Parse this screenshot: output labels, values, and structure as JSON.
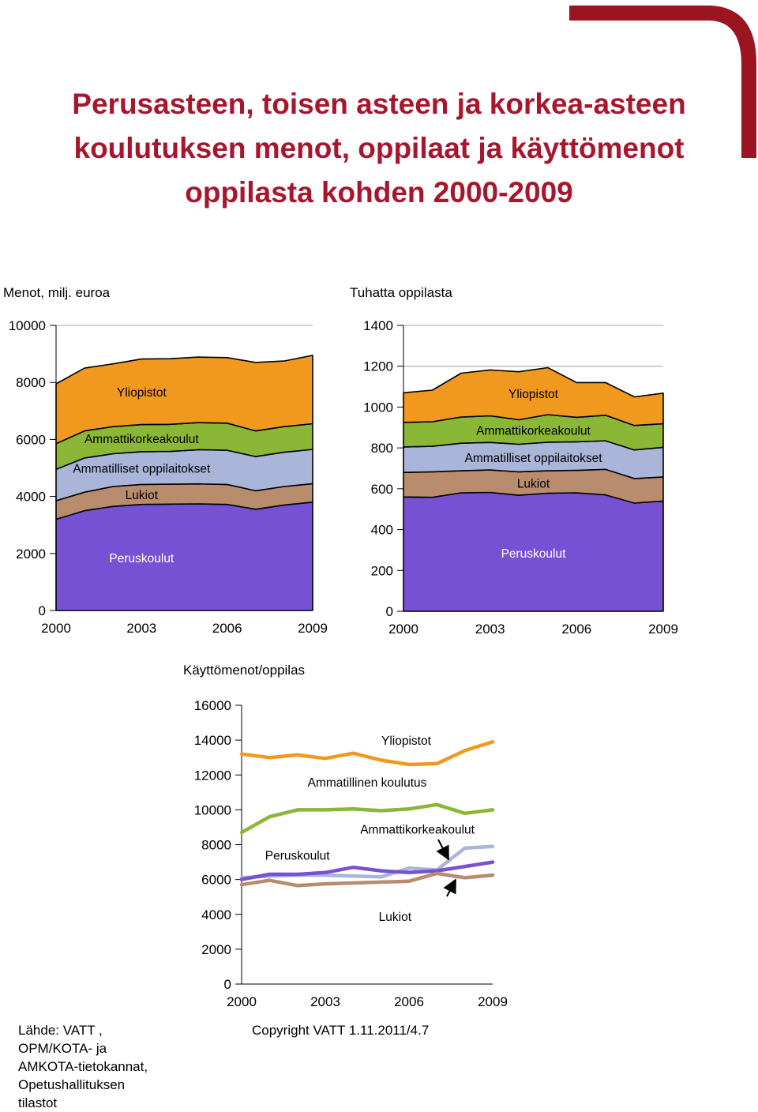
{
  "page": {
    "title": "Perusasteen, toisen asteen ja korkea-asteen\nkoulutuksen menot, oppilaat ja käyttömenot\noppilasta kohden 2000-2009",
    "source": "Lähde: VATT ,\nOPM/KOTA- ja\nAMKOTA-tietokannat,\nOpetushallituksen\ntilastot",
    "copyright": "Copyright VATT 1.11.2011/4.7"
  },
  "colors": {
    "title": "#a8162e",
    "corner": "#9a1520",
    "Peruskoulut": "#7751d3",
    "Lukiot": "#b98c6e",
    "Ammatilliset oppilaitokset": "#a9b6d9",
    "Ammattikorkeakoulut": "#8ab735",
    "Yliopistot": "#f1981f"
  },
  "chart_data": [
    {
      "type": "area",
      "stacked": true,
      "title": "Menot, milj. euroa",
      "x": [
        2000,
        2001,
        2002,
        2003,
        2004,
        2005,
        2006,
        2007,
        2008,
        2009
      ],
      "xticks": [
        "2000",
        "2003",
        "2006",
        "2009"
      ],
      "ylim": [
        0,
        10000
      ],
      "yticks": [
        "0",
        "2000",
        "4000",
        "6000",
        "8000",
        "10000"
      ],
      "series": [
        {
          "name": "Peruskoulut",
          "values": [
            3200,
            3500,
            3650,
            3720,
            3730,
            3740,
            3720,
            3550,
            3700,
            3800
          ],
          "label_x": 2003
        },
        {
          "name": "Lukiot",
          "values": [
            650,
            650,
            700,
            700,
            700,
            700,
            700,
            650,
            650,
            650
          ],
          "label_x": 2003
        },
        {
          "name": "Ammatilliset oppilaitokset",
          "values": [
            1100,
            1200,
            1150,
            1150,
            1150,
            1200,
            1200,
            1200,
            1200,
            1200
          ],
          "label_x": 2003
        },
        {
          "name": "Ammattikorkeakoulut",
          "values": [
            900,
            950,
            950,
            950,
            950,
            950,
            950,
            900,
            900,
            900
          ],
          "label_x": 2003
        },
        {
          "name": "Yliopistot",
          "values": [
            2100,
            2200,
            2200,
            2300,
            2300,
            2300,
            2300,
            2400,
            2300,
            2400
          ],
          "label_x": 2003
        }
      ]
    },
    {
      "type": "area",
      "stacked": true,
      "title": "Tuhatta oppilasta",
      "x": [
        2000,
        2001,
        2002,
        2003,
        2004,
        2005,
        2006,
        2007,
        2008,
        2009
      ],
      "xticks": [
        "2000",
        "2003",
        "2006",
        "2009"
      ],
      "ylim": [
        0,
        1400
      ],
      "yticks": [
        "0",
        "200",
        "400",
        "600",
        "800",
        "1000",
        "1200",
        "1400"
      ],
      "series": [
        {
          "name": "Peruskoulut",
          "values": [
            560,
            558,
            580,
            582,
            568,
            578,
            580,
            570,
            530,
            540
          ],
          "label_x": 2004.5
        },
        {
          "name": "Lukiot",
          "values": [
            120,
            125,
            108,
            110,
            115,
            110,
            110,
            125,
            120,
            118
          ],
          "label_x": 2004.5
        },
        {
          "name": "Ammatilliset oppilaitokset",
          "values": [
            125,
            125,
            135,
            135,
            135,
            140,
            140,
            140,
            140,
            145
          ],
          "label_x": 2004.5
        },
        {
          "name": "Ammattikorkeakoulut",
          "values": [
            120,
            120,
            128,
            130,
            120,
            135,
            120,
            125,
            120,
            115
          ],
          "label_x": 2004.5
        },
        {
          "name": "Yliopistot",
          "values": [
            145,
            155,
            215,
            225,
            235,
            230,
            170,
            160,
            140,
            150
          ],
          "label_x": 2004.5
        }
      ]
    },
    {
      "type": "line",
      "title": "Käyttömenot/oppilas",
      "x": [
        2000,
        2001,
        2002,
        2003,
        2004,
        2005,
        2006,
        2007,
        2008,
        2009
      ],
      "xticks": [
        "2000",
        "2003",
        "2006",
        "2009"
      ],
      "ylim": [
        0,
        16000
      ],
      "yticks": [
        "0",
        "2000",
        "4000",
        "6000",
        "8000",
        "10000",
        "12000",
        "14000",
        "16000"
      ],
      "series": [
        {
          "name": "Yliopistot",
          "values": [
            13200,
            13000,
            13150,
            12950,
            13250,
            12850,
            12600,
            12650,
            13400,
            13900
          ]
        },
        {
          "name": "Ammatillinen koulutus",
          "values": [
            8700,
            9600,
            10000,
            10000,
            10050,
            9950,
            10050,
            10300,
            9800,
            10000
          ]
        },
        {
          "name": "Ammattikorkeakoulut",
          "values": [
            6100,
            6200,
            6250,
            6250,
            6200,
            6150,
            6650,
            6550,
            7800,
            7900
          ]
        },
        {
          "name": "Peruskoulut",
          "values": [
            6000,
            6300,
            6300,
            6400,
            6700,
            6500,
            6400,
            6500,
            6750,
            7000
          ]
        },
        {
          "name": "Lukiot",
          "values": [
            5700,
            5950,
            5650,
            5750,
            5800,
            5850,
            5900,
            6350,
            6100,
            6250
          ]
        }
      ],
      "annotations": [
        {
          "text": "Yliopistot",
          "x": 2005.9,
          "y": 14000
        },
        {
          "text": "Ammatillinen koulutus",
          "x": 2004.5,
          "y": 11600
        },
        {
          "text": "Ammattikorkeakoulut",
          "x": 2006.3,
          "y": 8900
        },
        {
          "text": "Peruskoulut",
          "x": 2002.0,
          "y": 7400
        },
        {
          "text": "Lukiot",
          "x": 2005.5,
          "y": 3900
        }
      ]
    }
  ]
}
